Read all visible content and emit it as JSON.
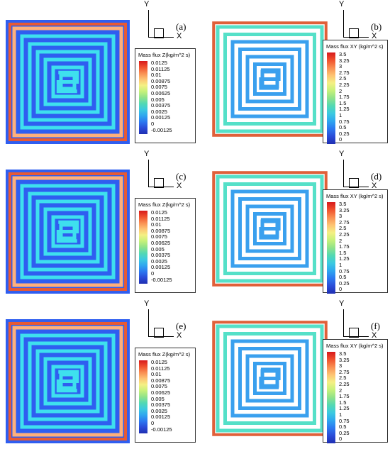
{
  "axes": {
    "y_label": "Y",
    "x_label": "X"
  },
  "colors": {
    "background_z": "#2f5ef0",
    "channel_z": "#3ee0ee",
    "edge_z": "#e85a33",
    "background_xy": "#ffffff",
    "channel_xy_core": "#3aa0ee",
    "channel_xy_outer": "#55e0c8",
    "edge_xy": "#e0603a"
  },
  "panels": [
    {
      "label": "(a)",
      "field": "z",
      "legend_title": "Mass flux Z(kg/m^2 s)",
      "ticks": [
        "0.0125",
        "0.01125",
        "0.01",
        "0.00875",
        "0.0075",
        "0.00625",
        "0.005",
        "0.00375",
        "0.0025",
        "0.00125",
        "0",
        "-0.00125"
      ]
    },
    {
      "label": "(b)",
      "field": "xy",
      "legend_title": "Mass flux XY (kg/m^2 s)",
      "ticks": [
        "3.5",
        "3.25",
        "3",
        "2.75",
        "2.5",
        "2.25",
        "2",
        "1.75",
        "1.5",
        "1.25",
        "1",
        "0.75",
        "0.5",
        "0.25",
        "0"
      ]
    },
    {
      "label": "(c)",
      "field": "z",
      "legend_title": "Mass flux Z(kg/m^2 s)",
      "ticks": [
        "0.0125",
        "0.01125",
        "0.01",
        "0.00875",
        "0.0075",
        "0.00625",
        "0.005",
        "0.00375",
        "0.0025",
        "0.00125",
        "0",
        "-0.00125"
      ]
    },
    {
      "label": "(d)",
      "field": "xy",
      "legend_title": "Mass flux XY (kg/m^2 s)",
      "ticks": [
        "3.5",
        "3.25",
        "3",
        "2.75",
        "2.5",
        "2.25",
        "2",
        "1.75",
        "1.5",
        "1.25",
        "1",
        "0.75",
        "0.5",
        "0.25",
        "0"
      ]
    },
    {
      "label": "(e)",
      "field": "z",
      "legend_title": "Mass flux Z(kg/m^2 s)",
      "ticks": [
        "0.0125",
        "0.01125",
        "0.01",
        "0.00875",
        "0.0075",
        "0.00625",
        "0.005",
        "0.00375",
        "0.0025",
        "0.00125",
        "0",
        "-0.00125"
      ]
    },
    {
      "label": "(f)",
      "field": "xy",
      "legend_title": "Mass flux XY (kg/m^2 s)",
      "ticks": [
        "3.5",
        "3.25",
        "3",
        "2.75",
        "2.5",
        "2.25",
        "2",
        "1.75",
        "1.5",
        "1.25",
        "1",
        "0.75",
        "0.5",
        "0.25",
        "0"
      ]
    }
  ]
}
